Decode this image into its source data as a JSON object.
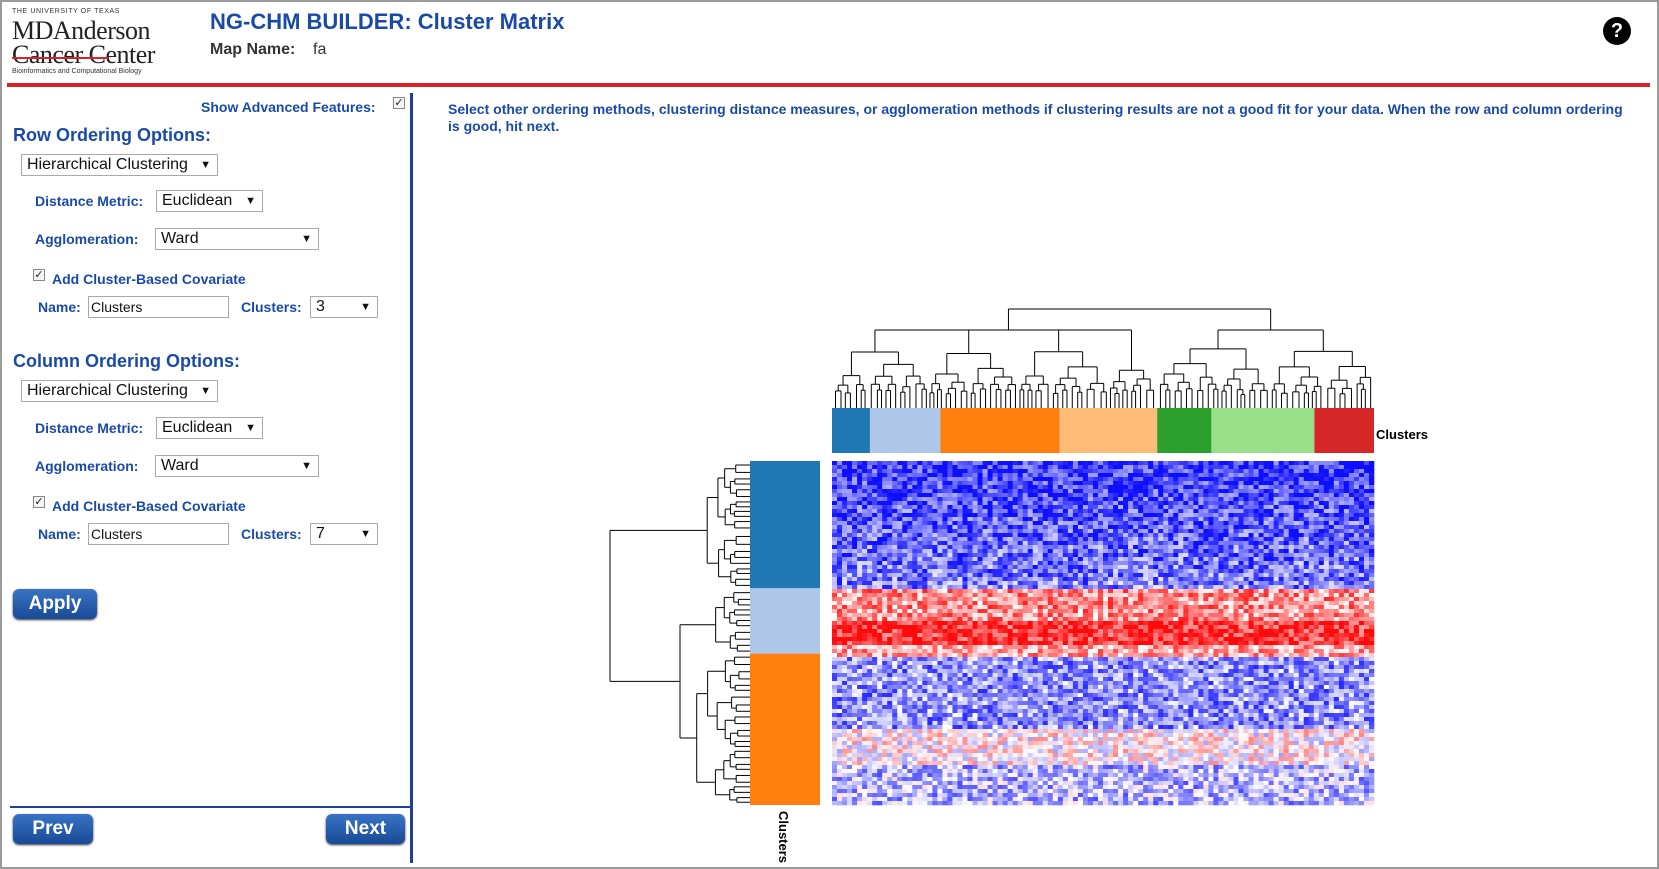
{
  "header": {
    "logo": {
      "line_small": "THE UNIVERSITY OF TEXAS",
      "line1": "MDAnderson",
      "line2": "Cancer Center",
      "subline": "Bioinformatics and Computational Biology"
    },
    "title": "NG-CHM BUILDER: Cluster Matrix",
    "map_name_label": "Map Name:",
    "map_name_value": "fa",
    "help_icon": "question-circle-icon",
    "help_glyph": "?"
  },
  "sidebar": {
    "show_advanced_label": "Show Advanced Features:",
    "show_advanced_checked": true,
    "row": {
      "heading": "Row Ordering Options:",
      "method": "Hierarchical Clustering",
      "distance_label": "Distance Metric:",
      "distance_value": "Euclidean",
      "agglomeration_label": "Agglomeration:",
      "agglomeration_value": "Ward",
      "covariate_label": "Add Cluster-Based Covariate",
      "covariate_checked": true,
      "name_label": "Name:",
      "name_value": "Clusters",
      "clusters_label": "Clusters:",
      "clusters_value": "3"
    },
    "column": {
      "heading": "Column Ordering Options:",
      "method": "Hierarchical Clustering",
      "distance_label": "Distance Metric:",
      "distance_value": "Euclidean",
      "agglomeration_label": "Agglomeration:",
      "agglomeration_value": "Ward",
      "covariate_label": "Add Cluster-Based Covariate",
      "covariate_checked": true,
      "name_label": "Name:",
      "name_value": "Clusters",
      "clusters_label": "Clusters:",
      "clusters_value": "7"
    },
    "apply_label": "Apply",
    "prev_label": "Prev",
    "next_label": "Next"
  },
  "main": {
    "instructions": "Select other ordering methods, clustering distance measures, or agglomeration methods if clustering results are not a good fit for your data. When the row and column ordering is good, hit next.",
    "column_covariate_label": "Clusters",
    "row_covariate_label": "Clusters",
    "column_clusters": [
      {
        "color": "#1f77b4",
        "fraction": 0.07
      },
      {
        "color": "#aec7e8",
        "fraction": 0.13
      },
      {
        "color": "#ff7f0e",
        "fraction": 0.22
      },
      {
        "color": "#ffbb78",
        "fraction": 0.18
      },
      {
        "color": "#2ca02c",
        "fraction": 0.1
      },
      {
        "color": "#98df8a",
        "fraction": 0.19
      },
      {
        "color": "#d62728",
        "fraction": 0.11
      }
    ],
    "row_clusters": [
      {
        "color": "#1f77b4",
        "fraction": 0.37
      },
      {
        "color": "#aec7e8",
        "fraction": 0.19
      },
      {
        "color": "#ff7f0e",
        "fraction": 0.44
      }
    ]
  }
}
